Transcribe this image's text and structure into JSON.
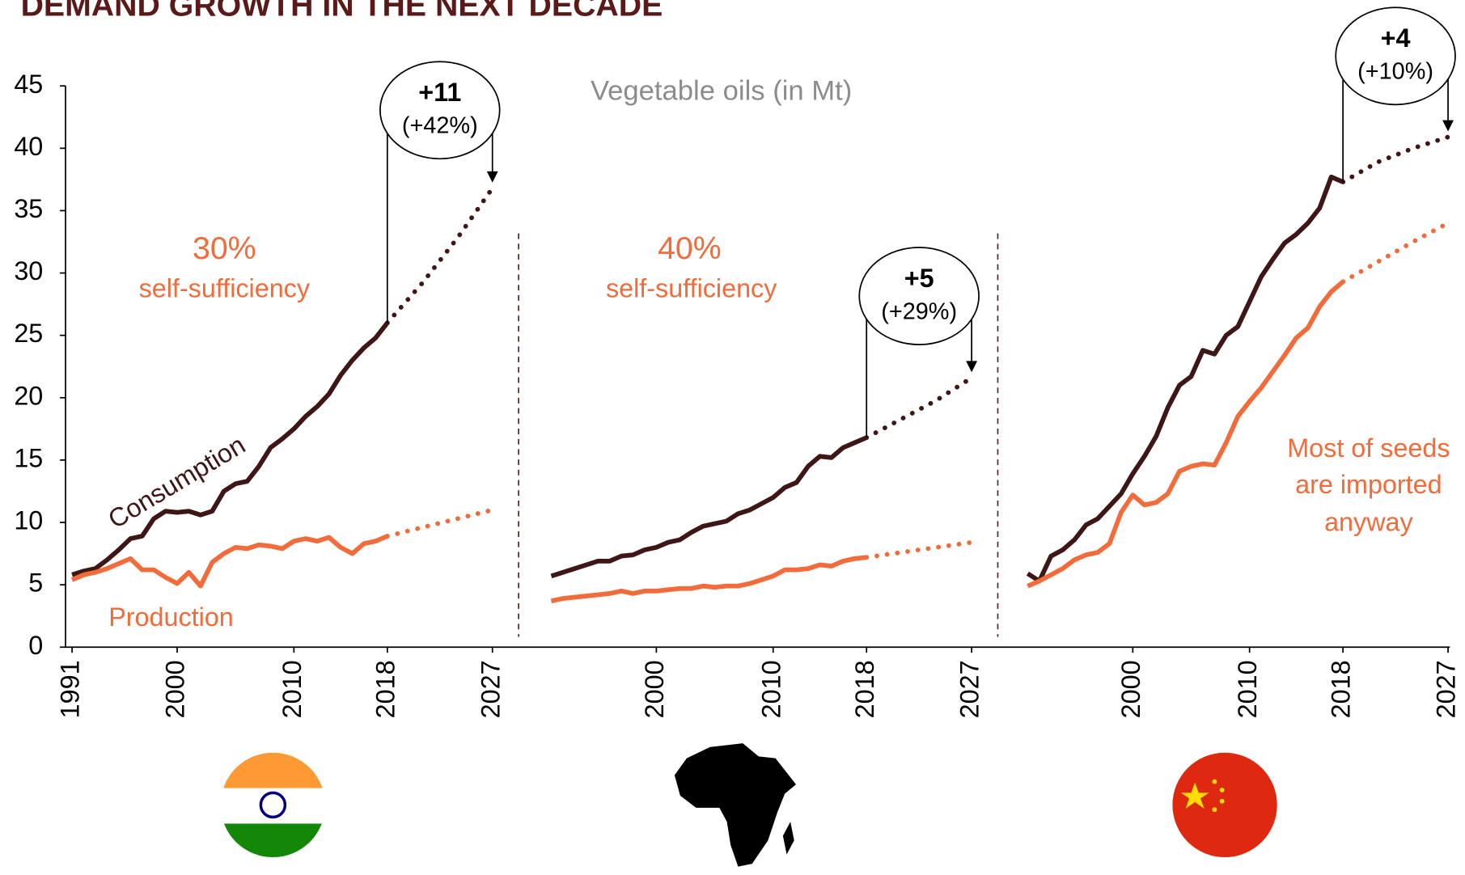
{
  "chart_data": [
    {
      "type": "line",
      "title": "DEMAND GROWTH IN THE NEXT DECADE",
      "subtitle": "Vegetable oils (in Mt)",
      "xlim": [
        1991,
        2027
      ],
      "ylim": [
        0,
        45
      ],
      "yticks": [
        0,
        5,
        10,
        15,
        20,
        25,
        30,
        35,
        40,
        45
      ],
      "xticks": [
        1991,
        2000,
        2010,
        2018,
        2027
      ],
      "series": [
        {
          "name": "Consumption",
          "color": "#3f1616",
          "style": "solid",
          "x": [
            1991,
            1992,
            1993,
            1994,
            1995,
            1996,
            1997,
            1998,
            1999,
            2000,
            2001,
            2002,
            2003,
            2004,
            2005,
            2006,
            2007,
            2008,
            2009,
            2010,
            2011,
            2012,
            2013,
            2014,
            2015,
            2016,
            2017,
            2018
          ],
          "values": [
            5.8,
            6.1,
            6.3,
            7.0,
            7.8,
            8.7,
            8.9,
            10.3,
            10.9,
            10.8,
            10.9,
            10.6,
            10.9,
            12.5,
            13.1,
            13.3,
            14.5,
            16.0,
            16.7,
            17.5,
            18.5,
            19.3,
            20.3,
            21.8,
            23.0,
            24.0,
            24.8,
            26.0
          ]
        },
        {
          "color": "#3f1616",
          "style": "dotted",
          "x": [
            2018,
            2021,
            2024,
            2027
          ],
          "values": [
            26.0,
            29.2,
            32.8,
            36.8
          ]
        },
        {
          "name": "Production",
          "color": "#f26b3a",
          "style": "solid",
          "x": [
            1991,
            1992,
            1993,
            1994,
            1995,
            1996,
            1997,
            1998,
            1999,
            2000,
            2001,
            2002,
            2003,
            2004,
            2005,
            2006,
            2007,
            2008,
            2009,
            2010,
            2011,
            2012,
            2013,
            2014,
            2015,
            2016,
            2017,
            2018
          ],
          "values": [
            5.4,
            5.8,
            6.0,
            6.3,
            6.7,
            7.1,
            6.2,
            6.2,
            5.6,
            5.1,
            6.0,
            4.9,
            6.8,
            7.5,
            8.0,
            7.9,
            8.2,
            8.1,
            7.9,
            8.5,
            8.7,
            8.5,
            8.8,
            8.0,
            7.5,
            8.3,
            8.5,
            8.9
          ]
        },
        {
          "color": "#f26b3a",
          "style": "dotted",
          "x": [
            2018,
            2021,
            2024,
            2027
          ],
          "values": [
            8.9,
            9.6,
            10.3,
            11.0
          ]
        }
      ],
      "annotations": [
        "30%",
        "self-sufficiency"
      ],
      "callout": {
        "change": "+11",
        "percent": "(+42%)"
      }
    },
    {
      "type": "line",
      "xlim": [
        1991,
        2027
      ],
      "ylim": [
        0,
        45
      ],
      "xticks": [
        2000,
        2010,
        2018,
        2027
      ],
      "series": [
        {
          "color": "#3f1616",
          "style": "solid",
          "x": [
            1991,
            1992,
            1993,
            1994,
            1995,
            1996,
            1997,
            1998,
            1999,
            2000,
            2001,
            2002,
            2003,
            2004,
            2005,
            2006,
            2007,
            2008,
            2009,
            2010,
            2011,
            2012,
            2013,
            2014,
            2015,
            2016,
            2017,
            2018
          ],
          "values": [
            5.7,
            6.0,
            6.3,
            6.6,
            6.9,
            6.9,
            7.3,
            7.4,
            7.8,
            8.0,
            8.4,
            8.6,
            9.2,
            9.7,
            9.9,
            10.1,
            10.7,
            11.0,
            11.5,
            12.0,
            12.8,
            13.2,
            14.5,
            15.3,
            15.2,
            16.0,
            16.4,
            16.8
          ]
        },
        {
          "color": "#3f1616",
          "style": "dotted",
          "x": [
            2018,
            2021,
            2024,
            2027
          ],
          "values": [
            16.8,
            18.3,
            19.8,
            21.6
          ]
        },
        {
          "color": "#f26b3a",
          "style": "solid",
          "x": [
            1991,
            1992,
            1993,
            1994,
            1995,
            1996,
            1997,
            1998,
            1999,
            2000,
            2001,
            2002,
            2003,
            2004,
            2005,
            2006,
            2007,
            2008,
            2009,
            2010,
            2011,
            2012,
            2013,
            2014,
            2015,
            2016,
            2017,
            2018
          ],
          "values": [
            3.7,
            3.9,
            4.0,
            4.1,
            4.2,
            4.3,
            4.5,
            4.3,
            4.5,
            4.5,
            4.6,
            4.7,
            4.7,
            4.9,
            4.8,
            4.9,
            4.9,
            5.1,
            5.4,
            5.7,
            6.2,
            6.2,
            6.3,
            6.6,
            6.5,
            6.9,
            7.1,
            7.2
          ]
        },
        {
          "color": "#f26b3a",
          "style": "dotted",
          "x": [
            2018,
            2021,
            2024,
            2027
          ],
          "values": [
            7.2,
            7.6,
            8.0,
            8.4
          ]
        }
      ],
      "annotations": [
        "40%",
        "self-sufficiency"
      ],
      "callout": {
        "change": "+5",
        "percent": "(+29%)"
      }
    },
    {
      "type": "line",
      "xlim": [
        1991,
        2027
      ],
      "ylim": [
        0,
        45
      ],
      "xticks": [
        2000,
        2010,
        2018,
        2027
      ],
      "series": [
        {
          "color": "#3f1616",
          "style": "solid",
          "x": [
            1991,
            1992,
            1993,
            1994,
            1995,
            1996,
            1997,
            1998,
            1999,
            2000,
            2001,
            2002,
            2003,
            2004,
            2005,
            2006,
            2007,
            2008,
            2009,
            2010,
            2011,
            2012,
            2013,
            2014,
            2015,
            2016,
            2017,
            2018
          ],
          "values": [
            5.9,
            5.3,
            7.3,
            7.8,
            8.6,
            9.8,
            10.3,
            11.3,
            12.3,
            13.9,
            15.3,
            16.9,
            19.2,
            21.0,
            21.7,
            23.8,
            23.5,
            25.0,
            25.7,
            27.7,
            29.7,
            31.1,
            32.4,
            33.1,
            34.0,
            35.2,
            37.7,
            37.3
          ]
        },
        {
          "color": "#3f1616",
          "style": "dotted",
          "x": [
            2018,
            2021,
            2024,
            2027
          ],
          "values": [
            37.3,
            38.9,
            40.0,
            40.9
          ]
        },
        {
          "color": "#f26b3a",
          "style": "solid",
          "x": [
            1991,
            1992,
            1993,
            1994,
            1995,
            1996,
            1997,
            1998,
            1999,
            2000,
            2001,
            2002,
            2003,
            2004,
            2005,
            2006,
            2007,
            2008,
            2009,
            2010,
            2011,
            2012,
            2013,
            2014,
            2015,
            2016,
            2017,
            2018
          ],
          "values": [
            4.9,
            5.3,
            5.8,
            6.3,
            7.0,
            7.4,
            7.6,
            8.3,
            10.8,
            12.2,
            11.4,
            11.6,
            12.3,
            14.1,
            14.5,
            14.7,
            14.6,
            16.4,
            18.5,
            19.7,
            20.8,
            22.1,
            23.4,
            24.8,
            25.6,
            27.3,
            28.5,
            29.3
          ]
        },
        {
          "color": "#f26b3a",
          "style": "dotted",
          "x": [
            2018,
            2021,
            2024,
            2027
          ],
          "values": [
            29.3,
            30.9,
            32.5,
            34.0
          ]
        }
      ],
      "annotations": [
        "Most of seeds",
        "are imported",
        "anyway"
      ],
      "callout": {
        "change": "+4",
        "percent": "(+10%)"
      }
    }
  ]
}
